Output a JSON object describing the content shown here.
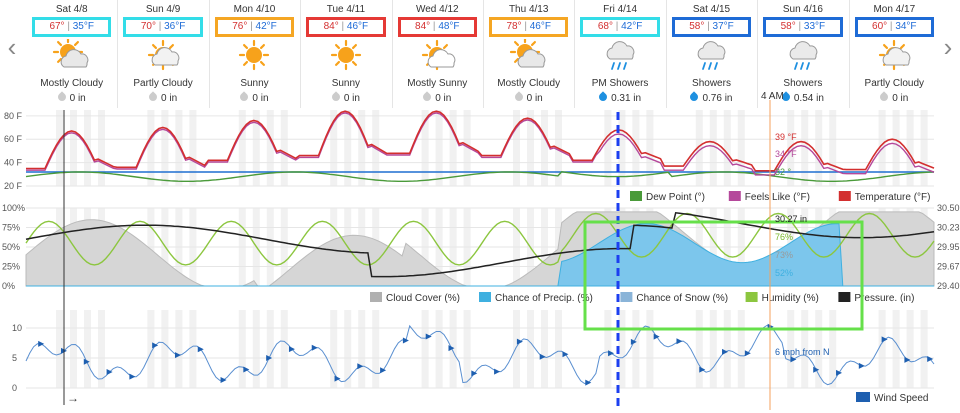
{
  "nav": {
    "prev_label": "‹",
    "next_label": "›"
  },
  "days": [
    {
      "date": "Sat 4/8",
      "hi": "67°",
      "lo": "35°F",
      "cond": "Mostly Cloudy",
      "precip": "0 in",
      "icon": "mostly-cloudy-icon",
      "box": "#33dde8",
      "drop": "#ccc"
    },
    {
      "date": "Sun 4/9",
      "hi": "70°",
      "lo": "36°F",
      "cond": "Partly Cloudy",
      "precip": "0 in",
      "icon": "partly-cloudy-icon",
      "box": "#33dde8",
      "drop": "#ccc"
    },
    {
      "date": "Mon 4/10",
      "hi": "76°",
      "lo": "42°F",
      "cond": "Sunny",
      "precip": "0 in",
      "icon": "sunny-icon",
      "box": "#f5a623",
      "drop": "#ccc"
    },
    {
      "date": "Tue 4/11",
      "hi": "84°",
      "lo": "46°F",
      "cond": "Sunny",
      "precip": "0 in",
      "icon": "sunny-icon",
      "box": "#e53935",
      "drop": "#ccc"
    },
    {
      "date": "Wed 4/12",
      "hi": "84°",
      "lo": "48°F",
      "cond": "Mostly Sunny",
      "precip": "0 in",
      "icon": "mostly-sunny-icon",
      "box": "#e53935",
      "drop": "#ccc"
    },
    {
      "date": "Thu 4/13",
      "hi": "78°",
      "lo": "46°F",
      "cond": "Mostly Cloudy",
      "precip": "0 in",
      "icon": "mostly-cloudy-icon",
      "box": "#f5a623",
      "drop": "#ccc"
    },
    {
      "date": "Fri 4/14",
      "hi": "68°",
      "lo": "42°F",
      "cond": "PM Showers",
      "precip": "0.31 in",
      "icon": "showers-icon",
      "box": "#33dde8",
      "drop": "#1e90e0"
    },
    {
      "date": "Sat 4/15",
      "hi": "58°",
      "lo": "37°F",
      "cond": "Showers",
      "precip": "0.76 in",
      "icon": "showers-icon",
      "box": "#1e6bd6",
      "drop": "#1e90e0"
    },
    {
      "date": "Sun 4/16",
      "hi": "58°",
      "lo": "33°F",
      "cond": "Showers",
      "precip": "0.54 in",
      "icon": "showers-icon",
      "box": "#1e6bd6",
      "drop": "#1e90e0"
    },
    {
      "date": "Mon 4/17",
      "hi": "60°",
      "lo": "34°F",
      "cond": "Partly Cloudy",
      "precip": "0 in",
      "icon": "partly-cloudy-icon",
      "box": "#1e6bd6",
      "drop": "#ccc"
    }
  ],
  "cursor": {
    "time_label": "4 AM"
  },
  "colors": {
    "temperature": "#d32f2f",
    "feels_like": "#b5489b",
    "dew_point": "#4a9a3a",
    "cloud_cover": "#b0b0b0",
    "precip_chance": "#3fb0e0",
    "snow_chance": "#8ab4d8",
    "humidity": "#8cc63f",
    "pressure": "#222222",
    "wind": "#1e5fb0",
    "highlight_box": "#66e04a",
    "dashed_line": "#1c3ff0",
    "cursor_line": "#f5a25d"
  },
  "chart_data": [
    {
      "type": "line",
      "name": "temperature-panel",
      "y_ticks": [
        "80 F",
        "60 F",
        "40 F",
        "20 F"
      ],
      "ylim": [
        20,
        85
      ],
      "series_temperature_daily_hi": [
        67,
        70,
        76,
        84,
        84,
        78,
        68,
        58,
        58,
        60
      ],
      "series_temperature_daily_lo": [
        35,
        36,
        42,
        46,
        48,
        46,
        42,
        37,
        33,
        34
      ],
      "freeze_line": 32,
      "cursor_readouts": {
        "temperature": "39 °F",
        "feels_like": "34 °F",
        "dew_point": "32 °"
      },
      "legend": [
        {
          "label": "Dew Point (°)",
          "key": "dew_point"
        },
        {
          "label": "Feels Like (°F)",
          "key": "feels_like"
        },
        {
          "label": "Temperature (°F)",
          "key": "temperature"
        }
      ]
    },
    {
      "type": "area",
      "name": "humidity-panel",
      "y_ticks_left": [
        "100%",
        "75%",
        "50%",
        "25%",
        "0%"
      ],
      "y_ticks_right": [
        "30.50",
        "30.23",
        "29.95",
        "29.67",
        "29.40"
      ],
      "cursor_readouts": {
        "pressure": "30.27 in",
        "humidity": "76%",
        "cloud_cover": "73%",
        "precip": "52%"
      },
      "legend": [
        {
          "label": "Cloud Cover (%)",
          "key": "cloud_cover"
        },
        {
          "label": "Chance of Precip. (%)",
          "key": "precip_chance"
        },
        {
          "label": "Chance of Snow (%)",
          "key": "snow_chance"
        },
        {
          "label": "Humidity (%)",
          "key": "humidity"
        },
        {
          "label": "Pressure. (in)",
          "key": "pressure"
        }
      ]
    },
    {
      "type": "line",
      "name": "wind-panel",
      "y_ticks": [
        "10",
        "5",
        "0"
      ],
      "ylim": [
        0,
        13
      ],
      "cursor_readout": "6 mph from N",
      "legend": [
        {
          "label": "Wind Speed",
          "key": "wind"
        }
      ]
    }
  ],
  "footer": {
    "arrow": "→"
  }
}
